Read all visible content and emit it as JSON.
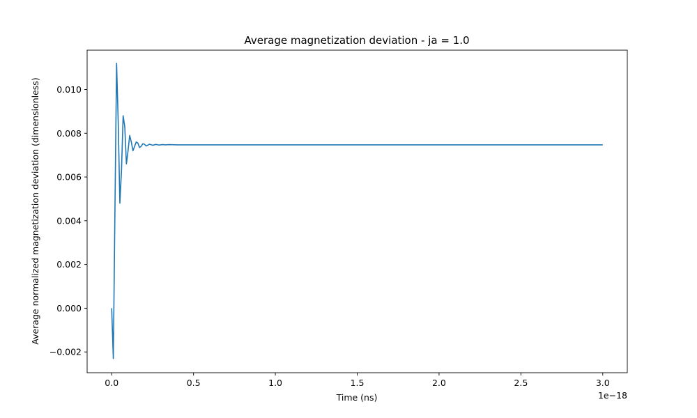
{
  "chart_data": {
    "type": "line",
    "title": "Average magnetization deviation - ja = 1.0",
    "xlabel": "Time (ns)",
    "ylabel": "Average normalized magnetization deviation (dimensionless)",
    "x_offset_label": "1e−18",
    "xlim": [
      -0.15,
      3.15
    ],
    "ylim": [
      -0.00295,
      0.0118
    ],
    "x_ticks": [
      0.0,
      0.5,
      1.0,
      1.5,
      2.0,
      2.5,
      3.0
    ],
    "x_tick_labels": [
      "0.0",
      "0.5",
      "1.0",
      "1.5",
      "2.0",
      "2.5",
      "3.0"
    ],
    "y_ticks": [
      -0.002,
      0.0,
      0.002,
      0.004,
      0.006,
      0.008,
      0.01
    ],
    "y_tick_labels": [
      "−0.002",
      "0.000",
      "0.002",
      "0.004",
      "0.006",
      "0.008",
      "0.010"
    ],
    "grid": false,
    "colors": {
      "line": "#1f77b4",
      "axes": "#000000",
      "background": "#ffffff"
    },
    "series": [
      {
        "x": [
          0.0,
          0.01,
          0.02,
          0.03,
          0.04,
          0.05,
          0.06,
          0.07,
          0.08,
          0.09,
          0.1,
          0.11,
          0.12,
          0.13,
          0.14,
          0.15,
          0.16,
          0.17,
          0.18,
          0.19,
          0.2,
          0.21,
          0.22,
          0.23,
          0.24,
          0.25,
          0.27,
          0.29,
          0.31,
          0.33,
          0.35,
          0.4,
          0.5,
          1.0,
          1.5,
          2.0,
          2.5,
          3.0
        ],
        "y": [
          0.0,
          -0.0023,
          0.0045,
          0.0112,
          0.0085,
          0.0048,
          0.0063,
          0.0088,
          0.0083,
          0.0066,
          0.0072,
          0.0079,
          0.0076,
          0.0072,
          0.0074,
          0.0076,
          0.00755,
          0.00735,
          0.0074,
          0.00752,
          0.0075,
          0.00742,
          0.00745,
          0.0075,
          0.00748,
          0.00745,
          0.00749,
          0.00746,
          0.00748,
          0.00747,
          0.00748,
          0.00747,
          0.00747,
          0.00747,
          0.00747,
          0.00747,
          0.00747,
          0.00747
        ]
      }
    ]
  }
}
